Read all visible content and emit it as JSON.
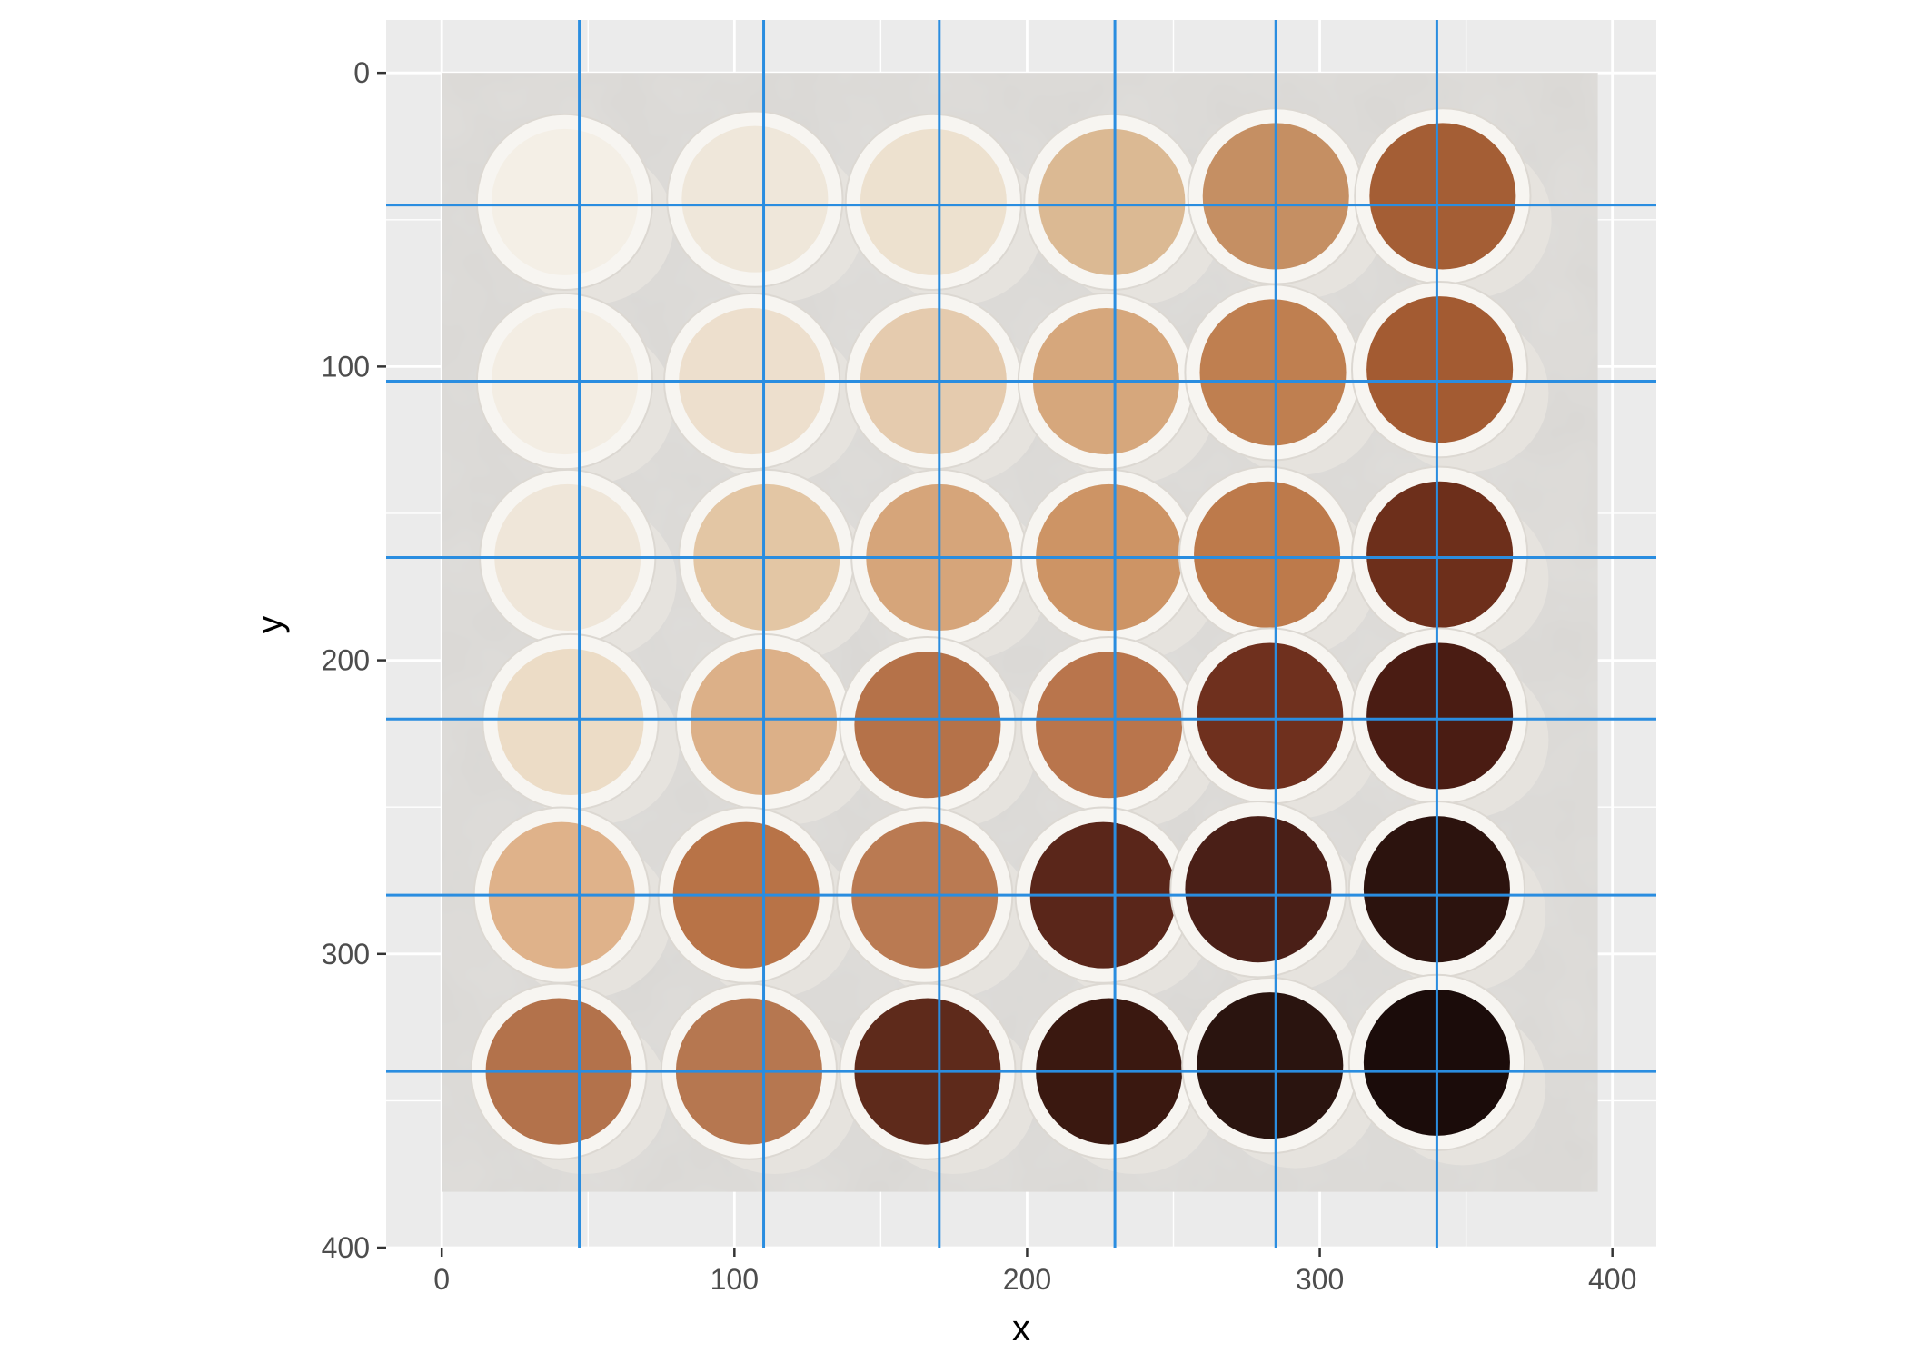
{
  "chart_data": {
    "type": "scatter",
    "title": "",
    "xlabel": "x",
    "ylabel": "y",
    "xlim": [
      -19,
      415
    ],
    "ylim": [
      400,
      -18
    ],
    "y_reversed": true,
    "x_ticks": [
      0,
      100,
      200,
      300,
      400
    ],
    "y_ticks": [
      0,
      100,
      200,
      300,
      400
    ],
    "grid": true,
    "legend": "none",
    "background_image": {
      "description_id": "coffee-cups-grid-photo",
      "extent": {
        "xmin": 0,
        "xmax": 395,
        "ymin": 0,
        "ymax": 381
      },
      "rows": 6,
      "cols": 6,
      "cup_colors": [
        [
          "#f4efe6",
          "#efe7da",
          "#ede1cf",
          "#dbb993",
          "#c58f63",
          "#a45e35"
        ],
        [
          "#f3ede3",
          "#eddfcd",
          "#e5cbae",
          "#d6a77c",
          "#bf7f50",
          "#a35b32"
        ],
        [
          "#efe6d9",
          "#e3c6a4",
          "#d6a57a",
          "#cd9465",
          "#bd7a4b",
          "#6d2f1b"
        ],
        [
          "#ecdcc6",
          "#dcb088",
          "#b57249",
          "#b9754c",
          "#6f301e",
          "#4a1c13"
        ],
        [
          "#dfb28a",
          "#b87347",
          "#ba7a52",
          "#5a261a",
          "#4a1f17",
          "#2c130e"
        ],
        [
          "#b3724b",
          "#b67750",
          "#5e2a1b",
          "#3a1810",
          "#2a140f",
          "#1b0c0a"
        ]
      ],
      "cup_rim_color": "#f7f5f1",
      "surface_color": "#d9d7d4"
    },
    "vlines": [
      47,
      110,
      170,
      230,
      285,
      340
    ],
    "hlines": [
      45,
      105,
      165,
      220,
      280,
      340
    ],
    "line_color": "#2a8de0",
    "panel_background": "#ebebeb",
    "gridline_color": "#ffffff"
  }
}
